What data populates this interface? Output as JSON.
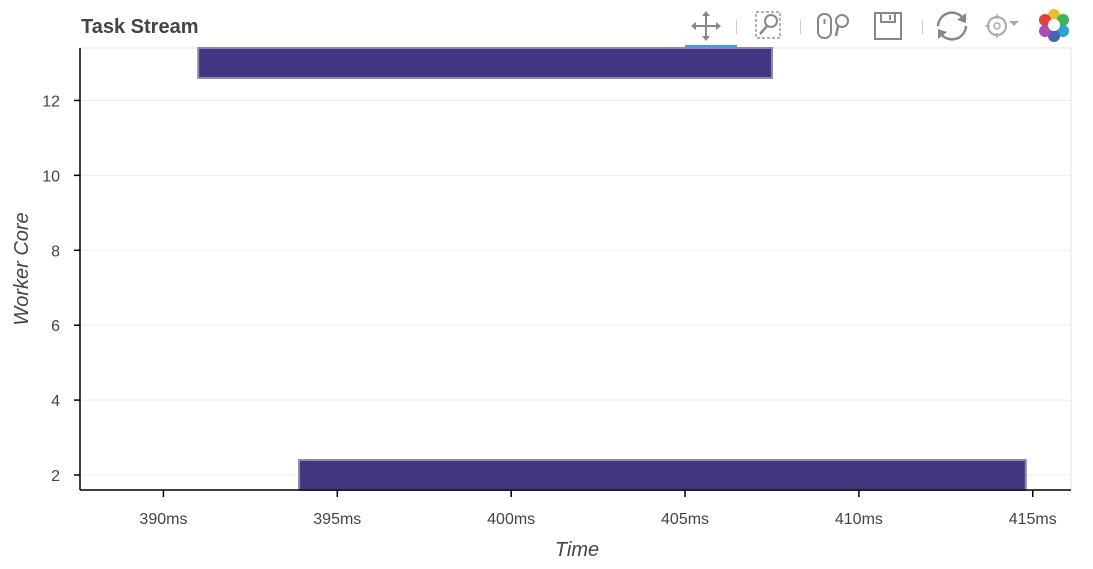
{
  "toolbar": {
    "tools": [
      {
        "name": "pan-tool",
        "icon": "pan-icon",
        "active": true
      },
      {
        "name": "box-zoom-tool",
        "icon": "box-zoom-icon",
        "active": false
      },
      {
        "name": "wheel-zoom-tool",
        "icon": "wheel-zoom-icon",
        "active": false
      },
      {
        "name": "save-tool",
        "icon": "save-icon",
        "active": false
      },
      {
        "name": "reset-tool",
        "icon": "reset-icon",
        "active": false
      },
      {
        "name": "hover-tool",
        "icon": "hover-icon",
        "active": false
      },
      {
        "name": "bokeh-logo",
        "icon": "bokeh-logo-icon",
        "active": false
      }
    ],
    "active_color": "#26aae1"
  },
  "chart_data": {
    "type": "bar",
    "orientation": "horizontal-gantt",
    "title": "Task Stream",
    "xlabel": "Time",
    "ylabel": "Worker Core",
    "xlim": [
      387.6,
      416.1
    ],
    "ylim": [
      1.6,
      13.4
    ],
    "x_ticks": [
      390,
      395,
      400,
      405,
      410,
      415
    ],
    "x_tick_labels": [
      "390ms",
      "395ms",
      "400ms",
      "405ms",
      "410ms",
      "415ms"
    ],
    "y_ticks": [
      2,
      4,
      6,
      8,
      10,
      12
    ],
    "y_tick_labels": [
      "2",
      "4",
      "6",
      "8",
      "10",
      "12"
    ],
    "grid": true,
    "bar_color": "#433681",
    "bar_edge_color": "#8b84b4",
    "tasks": [
      {
        "worker_core": 13,
        "start": 391.0,
        "end": 407.5
      },
      {
        "worker_core": 2,
        "start": 393.9,
        "end": 414.8
      }
    ]
  }
}
